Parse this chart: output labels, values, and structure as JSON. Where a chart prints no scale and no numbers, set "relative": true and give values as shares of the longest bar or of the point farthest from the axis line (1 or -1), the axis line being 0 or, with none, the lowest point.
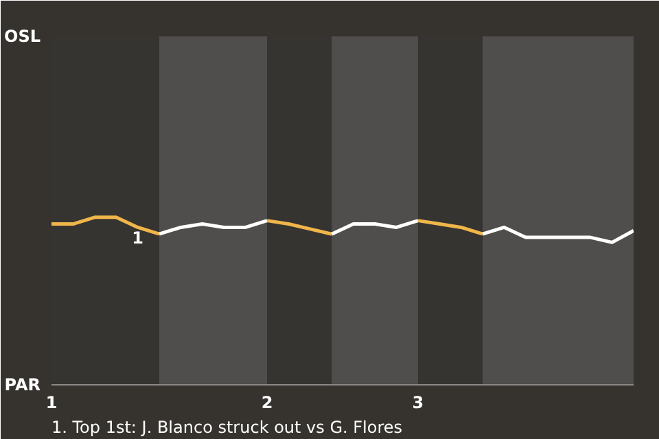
{
  "chart_data": {
    "type": "line",
    "relative": true,
    "categories": [
      "1",
      null,
      null,
      null,
      null,
      null,
      null,
      null,
      null,
      null,
      "2",
      null,
      null,
      null,
      null,
      null,
      null,
      "3",
      null,
      null,
      null,
      null,
      null,
      null,
      null,
      null,
      null,
      null
    ],
    "series": [
      {
        "color": "#f0b64a",
        "values": [
          0.96,
          0.96,
          1,
          1,
          0.94,
          0.9,
          null,
          null,
          null,
          null,
          null,
          null,
          null,
          null,
          null,
          null,
          null,
          null,
          null,
          null,
          null,
          null,
          null,
          null,
          null,
          null,
          null,
          null
        ]
      },
      {
        "color": "#ffffff",
        "values": [
          null,
          null,
          null,
          null,
          null,
          0.9,
          0.94,
          0.96,
          0.94,
          0.94,
          0.98,
          null,
          null,
          null,
          null,
          null,
          null,
          null,
          null,
          null,
          null,
          null,
          null,
          null,
          null,
          null,
          null,
          null
        ]
      },
      {
        "color": "#f0b64a",
        "values": [
          null,
          null,
          null,
          null,
          null,
          null,
          null,
          null,
          null,
          null,
          0.98,
          0.96,
          0.93,
          0.9,
          null,
          null,
          null,
          null,
          null,
          null,
          null,
          null,
          null,
          null,
          null,
          null,
          null,
          null
        ]
      },
      {
        "color": "#ffffff",
        "values": [
          null,
          null,
          null,
          null,
          null,
          null,
          null,
          null,
          null,
          null,
          null,
          null,
          null,
          0.9,
          0.96,
          0.96,
          0.94,
          0.98,
          null,
          null,
          null,
          null,
          null,
          null,
          null,
          null,
          null,
          null
        ]
      },
      {
        "color": "#f0b64a",
        "values": [
          null,
          null,
          null,
          null,
          null,
          null,
          null,
          null,
          null,
          null,
          null,
          null,
          null,
          null,
          null,
          null,
          null,
          0.98,
          0.96,
          0.94,
          0.9,
          null,
          null,
          null,
          null,
          null,
          null,
          null
        ]
      },
      {
        "color": "#ffffff",
        "values": [
          null,
          null,
          null,
          null,
          null,
          null,
          null,
          null,
          null,
          null,
          null,
          null,
          null,
          null,
          null,
          null,
          null,
          null,
          null,
          null,
          0.9,
          0.94,
          0.88,
          0.88,
          0.88,
          0.88,
          0.85,
          0.92
        ]
      }
    ],
    "annotations": [
      "OSL",
      "PAR",
      "1",
      "1. Top 1st: J. Blanco struck out vs G. Flores"
    ],
    "line_style": "solid"
  }
}
